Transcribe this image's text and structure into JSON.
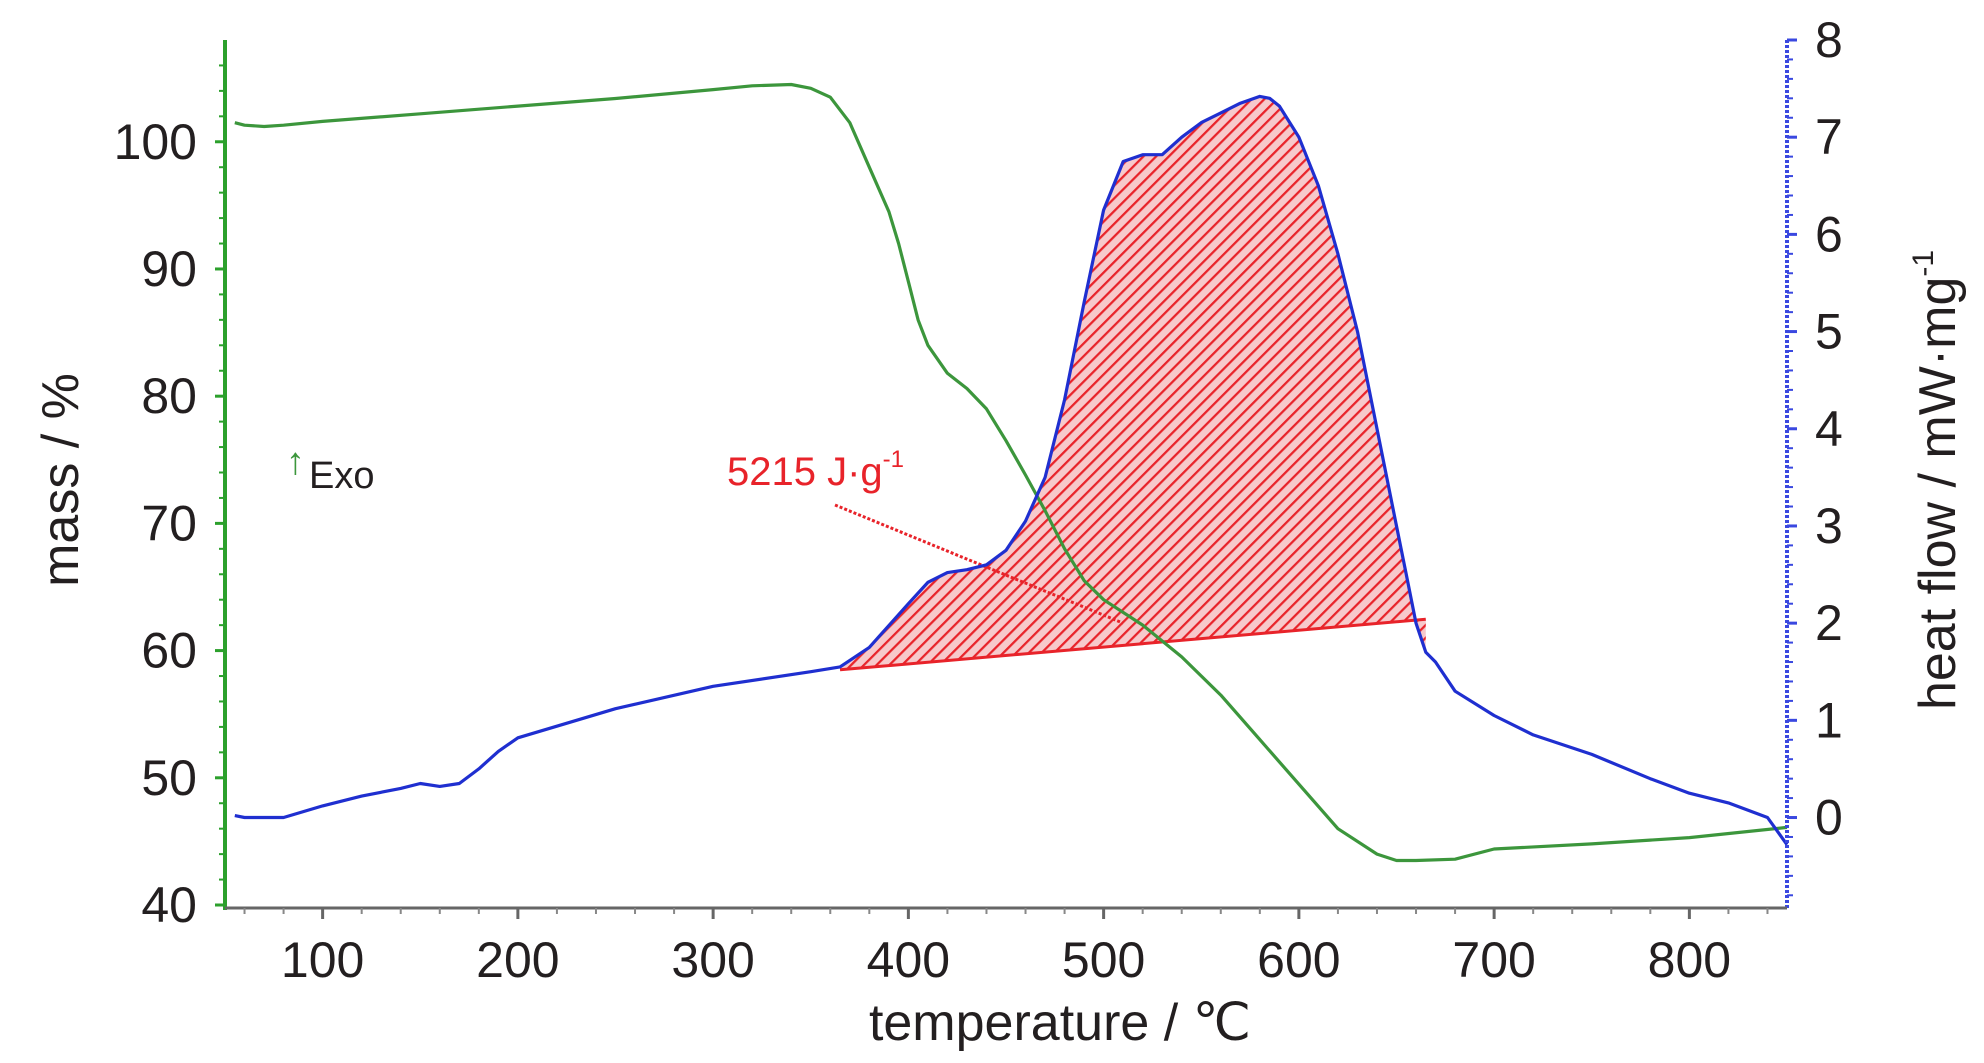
{
  "chart_data": {
    "type": "line",
    "xlabel": "temperature / ℃",
    "ylabel_left": "mass / %",
    "ylabel_right": "heat flow / mW·mg",
    "ylabel_right_sup": "-1",
    "xlim": [
      50,
      850
    ],
    "ylim_left": [
      40,
      108
    ],
    "ylim_right": [
      -0.9,
      8
    ],
    "x_ticks": [
      100,
      200,
      300,
      400,
      500,
      600,
      700,
      800
    ],
    "y_left_ticks": [
      40,
      50,
      60,
      70,
      80,
      90,
      100
    ],
    "y_right_ticks": [
      0,
      1,
      2,
      3,
      4,
      5,
      6,
      7,
      8
    ],
    "grid": false,
    "colors": {
      "mass": "#3c963c",
      "heat_flow": "#1f2fd0",
      "peak_area": "#e8232a",
      "left_axis": "#2ca02c",
      "right_axis": "#3a48e0"
    },
    "exo_marker": {
      "arrow": "↑",
      "label": "Exo"
    },
    "annotation": {
      "text": "5215 J·g",
      "sup": "-1",
      "color": "#e8232a",
      "target": {
        "x": 510,
        "y_right": 2.0
      }
    },
    "peak_integration": {
      "baseline_start": {
        "x": 365,
        "y": 1.52
      },
      "baseline_end": {
        "x": 665,
        "y": 2.04
      },
      "enthalpy": "5215 J·g-1"
    },
    "series": [
      {
        "axis": "left",
        "unit": "%",
        "x": [
          55,
          60,
          70,
          80,
          100,
          150,
          200,
          250,
          300,
          320,
          340,
          350,
          360,
          370,
          380,
          390,
          395,
          400,
          405,
          410,
          420,
          430,
          440,
          450,
          460,
          470,
          480,
          490,
          500,
          520,
          540,
          560,
          580,
          600,
          620,
          640,
          650,
          660,
          680,
          700,
          750,
          800,
          850
        ],
        "values": [
          101.5,
          101.3,
          101.2,
          101.3,
          101.6,
          102.2,
          102.8,
          103.4,
          104.1,
          104.4,
          104.5,
          104.2,
          103.5,
          101.5,
          98.0,
          94.5,
          92.0,
          89.0,
          86.0,
          84.0,
          81.8,
          80.6,
          79.0,
          76.5,
          73.8,
          71.0,
          68.0,
          65.5,
          64.0,
          62.0,
          59.5,
          56.5,
          53.0,
          49.5,
          46.0,
          44.0,
          43.5,
          43.5,
          43.6,
          44.4,
          44.8,
          45.3,
          46.1
        ]
      },
      {
        "axis": "right",
        "unit": "mW·mg-1",
        "x": [
          55,
          60,
          80,
          100,
          120,
          140,
          150,
          160,
          170,
          180,
          190,
          200,
          250,
          300,
          350,
          365,
          380,
          400,
          410,
          420,
          430,
          440,
          450,
          460,
          470,
          480,
          490,
          500,
          510,
          520,
          530,
          540,
          550,
          560,
          570,
          580,
          585,
          590,
          600,
          610,
          620,
          630,
          640,
          650,
          655,
          660,
          665,
          670,
          680,
          700,
          720,
          750,
          780,
          800,
          820,
          840,
          850
        ],
        "values": [
          0.02,
          0.0,
          0.0,
          0.12,
          0.22,
          0.3,
          0.35,
          0.32,
          0.35,
          0.5,
          0.68,
          0.82,
          1.12,
          1.35,
          1.5,
          1.55,
          1.75,
          2.2,
          2.42,
          2.52,
          2.55,
          2.6,
          2.75,
          3.05,
          3.5,
          4.3,
          5.3,
          6.25,
          6.75,
          6.82,
          6.82,
          7.0,
          7.15,
          7.25,
          7.35,
          7.42,
          7.4,
          7.32,
          7.0,
          6.5,
          5.8,
          5.0,
          4.0,
          3.0,
          2.5,
          2.0,
          1.7,
          1.6,
          1.3,
          1.05,
          0.85,
          0.65,
          0.4,
          0.25,
          0.15,
          0.0,
          -0.28
        ]
      }
    ]
  }
}
